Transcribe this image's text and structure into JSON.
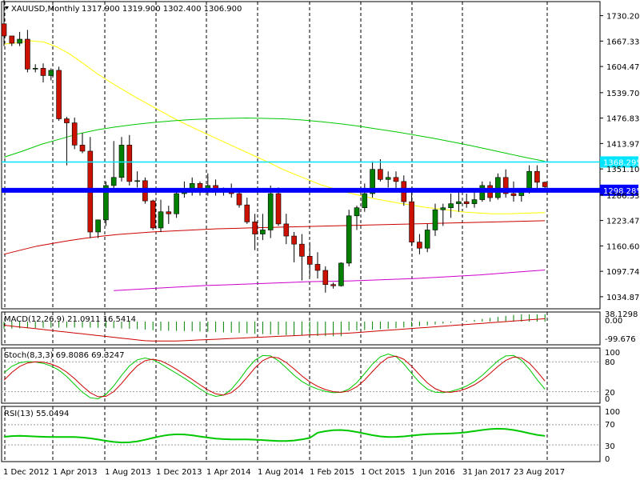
{
  "header": {
    "symbol_timeframe": "XAUUSD,Monthly",
    "ohlc": "1317.900 1319.900 1302.400 1306.900"
  },
  "chart_data": {
    "type": "candlestick",
    "symbol": "XAUUSD",
    "timeframe": "Monthly",
    "colors": {
      "bull": "#008000",
      "bear": "#cc1100",
      "wick": "#000000",
      "background": "#ffffff"
    },
    "price_ticks": [
      "1730.200",
      "1667.335",
      "1604.470",
      "1539.700",
      "1476.835",
      "1413.970",
      "1351.105",
      "1286.335",
      "1223.470",
      "1160.605",
      "1097.740",
      "1034.875"
    ],
    "price_range": [
      1005,
      1765
    ],
    "time_labels": [
      "1 Dec 2012",
      "1 Apr 2013",
      "1 Aug 2013",
      "1 Dec 2013",
      "1 Apr 2014",
      "1 Aug 2014",
      "1 Feb 2015",
      "1 Oct 2015",
      "1 Jun 2016",
      "31 Jan 2017",
      "23 Aug 2017"
    ],
    "grid": "vertical-dashed",
    "horizontal_lines": [
      {
        "label": "1368.295",
        "price": 1368.295,
        "color": "#00e5ff"
      },
      {
        "label": "1298.285",
        "price": 1298.285,
        "color": "#0000ff"
      }
    ],
    "moving_averages": [
      {
        "color": "#ffff00",
        "values": [
          1660,
          1663,
          1668,
          1665,
          1653,
          1635,
          1612,
          1588,
          1567,
          1547,
          1528,
          1510,
          1492,
          1474,
          1458,
          1443,
          1428,
          1413,
          1398,
          1383,
          1368,
          1352,
          1338,
          1325,
          1312,
          1302,
          1293,
          1285,
          1278,
          1272,
          1266,
          1261,
          1256,
          1252,
          1248,
          1244,
          1242,
          1240,
          1240,
          1241,
          1242,
          1243
        ]
      },
      {
        "color": "#00c800",
        "values": [
          1380,
          1395,
          1412,
          1425,
          1438,
          1448,
          1455,
          1461,
          1466,
          1470,
          1473,
          1475,
          1476,
          1477,
          1476,
          1475,
          1472,
          1468,
          1463,
          1457,
          1450,
          1443,
          1435,
          1427,
          1418,
          1409,
          1399,
          1389,
          1379,
          1370
        ]
      },
      {
        "color": "#cc0000",
        "values": [
          1140,
          1150,
          1160,
          1167,
          1174,
          1180,
          1185,
          1189,
          1192,
          1195,
          1197,
          1199,
          1201,
          1203,
          1204,
          1205,
          1206,
          1207,
          1208,
          1209,
          1210,
          1211,
          1212,
          1213,
          1214,
          1215,
          1216,
          1217,
          1218,
          1219,
          1220,
          1221,
          1222,
          1223
        ]
      },
      {
        "color": "#cc00cc",
        "values": [
          1050,
          1053,
          1056,
          1059,
          1062,
          1064,
          1066,
          1068,
          1070,
          1072,
          1073,
          1074,
          1076,
          1078,
          1080,
          1083,
          1086,
          1089,
          1093,
          1097,
          1101
        ]
      }
    ],
    "candles": [
      [
        1710,
        1795,
        1655,
        1680
      ],
      [
        1680,
        1680,
        1655,
        1662
      ],
      [
        1662,
        1690,
        1655,
        1672
      ],
      [
        1672,
        1695,
        1590,
        1598
      ],
      [
        1598,
        1610,
        1590,
        1600
      ],
      [
        1600,
        1612,
        1565,
        1582
      ],
      [
        1582,
        1600,
        1570,
        1595
      ],
      [
        1595,
        1604,
        1470,
        1475
      ],
      [
        1475,
        1480,
        1360,
        1465
      ],
      [
        1465,
        1478,
        1400,
        1410
      ],
      [
        1410,
        1440,
        1390,
        1395
      ],
      [
        1395,
        1430,
        1180,
        1195
      ],
      [
        1195,
        1220,
        1180,
        1225
      ],
      [
        1225,
        1320,
        1210,
        1310
      ],
      [
        1310,
        1420,
        1300,
        1330
      ],
      [
        1330,
        1430,
        1320,
        1410
      ],
      [
        1410,
        1435,
        1310,
        1320
      ],
      [
        1320,
        1345,
        1305,
        1322
      ],
      [
        1322,
        1330,
        1265,
        1272
      ],
      [
        1272,
        1275,
        1200,
        1205
      ],
      [
        1205,
        1275,
        1195,
        1245
      ],
      [
        1245,
        1260,
        1215,
        1240
      ],
      [
        1240,
        1300,
        1230,
        1290
      ],
      [
        1290,
        1320,
        1280,
        1295
      ],
      [
        1295,
        1330,
        1285,
        1315
      ],
      [
        1315,
        1320,
        1285,
        1300
      ],
      [
        1300,
        1340,
        1285,
        1310
      ],
      [
        1310,
        1325,
        1285,
        1295
      ],
      [
        1295,
        1305,
        1285,
        1300
      ],
      [
        1300,
        1315,
        1280,
        1290
      ],
      [
        1290,
        1300,
        1255,
        1262
      ],
      [
        1262,
        1280,
        1215,
        1220
      ],
      [
        1220,
        1240,
        1150,
        1190
      ],
      [
        1190,
        1240,
        1175,
        1200
      ],
      [
        1200,
        1310,
        1180,
        1290
      ],
      [
        1290,
        1305,
        1210,
        1215
      ],
      [
        1215,
        1240,
        1165,
        1185
      ],
      [
        1185,
        1195,
        1120,
        1165
      ],
      [
        1165,
        1190,
        1075,
        1135
      ],
      [
        1135,
        1170,
        1085,
        1115
      ],
      [
        1115,
        1145,
        1080,
        1100
      ],
      [
        1100,
        1110,
        1045,
        1065
      ],
      [
        1065,
        1070,
        1055,
        1062
      ],
      [
        1062,
        1120,
        1060,
        1118
      ],
      [
        1118,
        1250,
        1110,
        1235
      ],
      [
        1235,
        1260,
        1200,
        1255
      ],
      [
        1255,
        1315,
        1245,
        1290
      ],
      [
        1290,
        1370,
        1280,
        1350
      ],
      [
        1350,
        1375,
        1320,
        1325
      ],
      [
        1325,
        1345,
        1305,
        1330
      ],
      [
        1330,
        1345,
        1300,
        1320
      ],
      [
        1320,
        1335,
        1260,
        1270
      ],
      [
        1270,
        1305,
        1160,
        1170
      ],
      [
        1170,
        1190,
        1140,
        1155
      ],
      [
        1155,
        1215,
        1145,
        1200
      ],
      [
        1200,
        1265,
        1185,
        1250
      ],
      [
        1250,
        1265,
        1210,
        1255
      ],
      [
        1255,
        1290,
        1230,
        1265
      ],
      [
        1265,
        1295,
        1245,
        1270
      ],
      [
        1270,
        1290,
        1255,
        1265
      ],
      [
        1265,
        1300,
        1255,
        1275
      ],
      [
        1275,
        1320,
        1270,
        1310
      ],
      [
        1310,
        1320,
        1270,
        1280
      ],
      [
        1280,
        1340,
        1275,
        1330
      ],
      [
        1330,
        1350,
        1280,
        1290
      ],
      [
        1290,
        1320,
        1270,
        1285
      ],
      [
        1285,
        1300,
        1270,
        1295
      ],
      [
        1295,
        1360,
        1290,
        1345
      ],
      [
        1345,
        1360,
        1300,
        1318
      ],
      [
        1318,
        1320,
        1302,
        1307
      ]
    ],
    "panels": [
      {
        "id": "macd",
        "label": "MACD(12,26,9) 21.0911 16.5414",
        "ticks": [
          "38.1298",
          "0.00",
          "-99.676"
        ]
      },
      {
        "id": "stoch",
        "label": "Stoch(8,3,3) 69.8086 69.3247",
        "ticks": [
          "100",
          "80",
          "20",
          "0"
        ]
      },
      {
        "id": "rsi",
        "label": "RSI(13) 55.0494",
        "ticks": [
          "100",
          "70",
          "30",
          "0"
        ]
      }
    ]
  }
}
